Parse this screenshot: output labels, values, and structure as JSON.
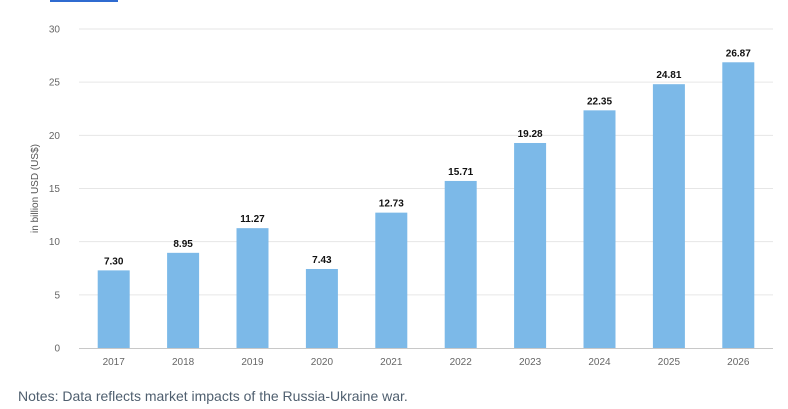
{
  "chart_data": {
    "type": "bar",
    "categories": [
      "2017",
      "2018",
      "2019",
      "2020",
      "2021",
      "2022",
      "2023",
      "2024",
      "2025",
      "2026"
    ],
    "values": [
      7.3,
      8.95,
      11.27,
      7.43,
      12.73,
      15.71,
      19.28,
      22.35,
      24.81,
      26.87
    ],
    "value_labels": [
      "7.30",
      "8.95",
      "11.27",
      "7.43",
      "12.73",
      "15.71",
      "19.28",
      "22.35",
      "24.81",
      "26.87"
    ],
    "ylabel": "in billion USD (US$)",
    "xlabel": "",
    "ylim": [
      0,
      30
    ],
    "yticks": [
      0,
      5,
      10,
      15,
      20,
      25,
      30
    ],
    "grid": true,
    "bar_color": "#7cb9e8"
  },
  "notes": "Notes: Data reflects market impacts of the Russia-Ukraine war."
}
